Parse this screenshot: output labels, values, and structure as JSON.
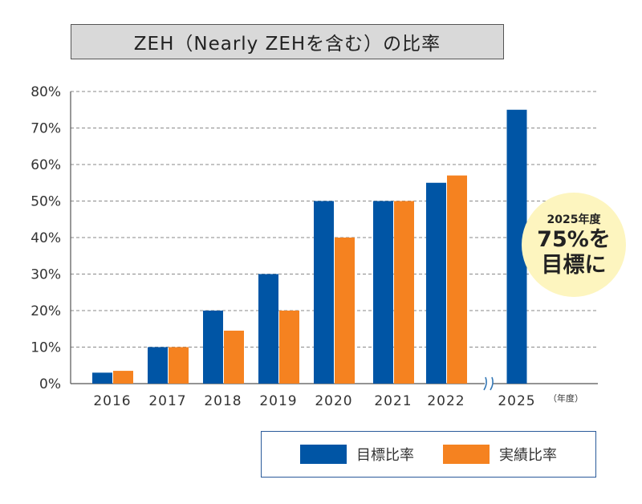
{
  "chart_data": {
    "type": "bar",
    "title": "ZEH（Nearly ZEHを含む）の比率",
    "categories": [
      "2016",
      "2017",
      "2018",
      "2019",
      "2020",
      "2021",
      "2022",
      "2025"
    ],
    "x_unit_label": "（年度）",
    "ylim": [
      0,
      80
    ],
    "yticks": [
      "0%",
      "10%",
      "20%",
      "30%",
      "40%",
      "50%",
      "60%",
      "70%",
      "80%"
    ],
    "grid": true,
    "axis_break_after": "2022",
    "series": [
      {
        "name": "目標比率",
        "color": "#0055a5",
        "values": [
          3,
          10,
          20,
          30,
          50,
          50,
          55,
          75
        ]
      },
      {
        "name": "実績比率",
        "color": "#f58220",
        "values": [
          3.5,
          10,
          14.5,
          20,
          40,
          50,
          57,
          null
        ]
      }
    ],
    "legend_placement": "bottom",
    "callout": {
      "line1": "2025年度",
      "line2": "75%を",
      "line3": "目標に"
    }
  }
}
